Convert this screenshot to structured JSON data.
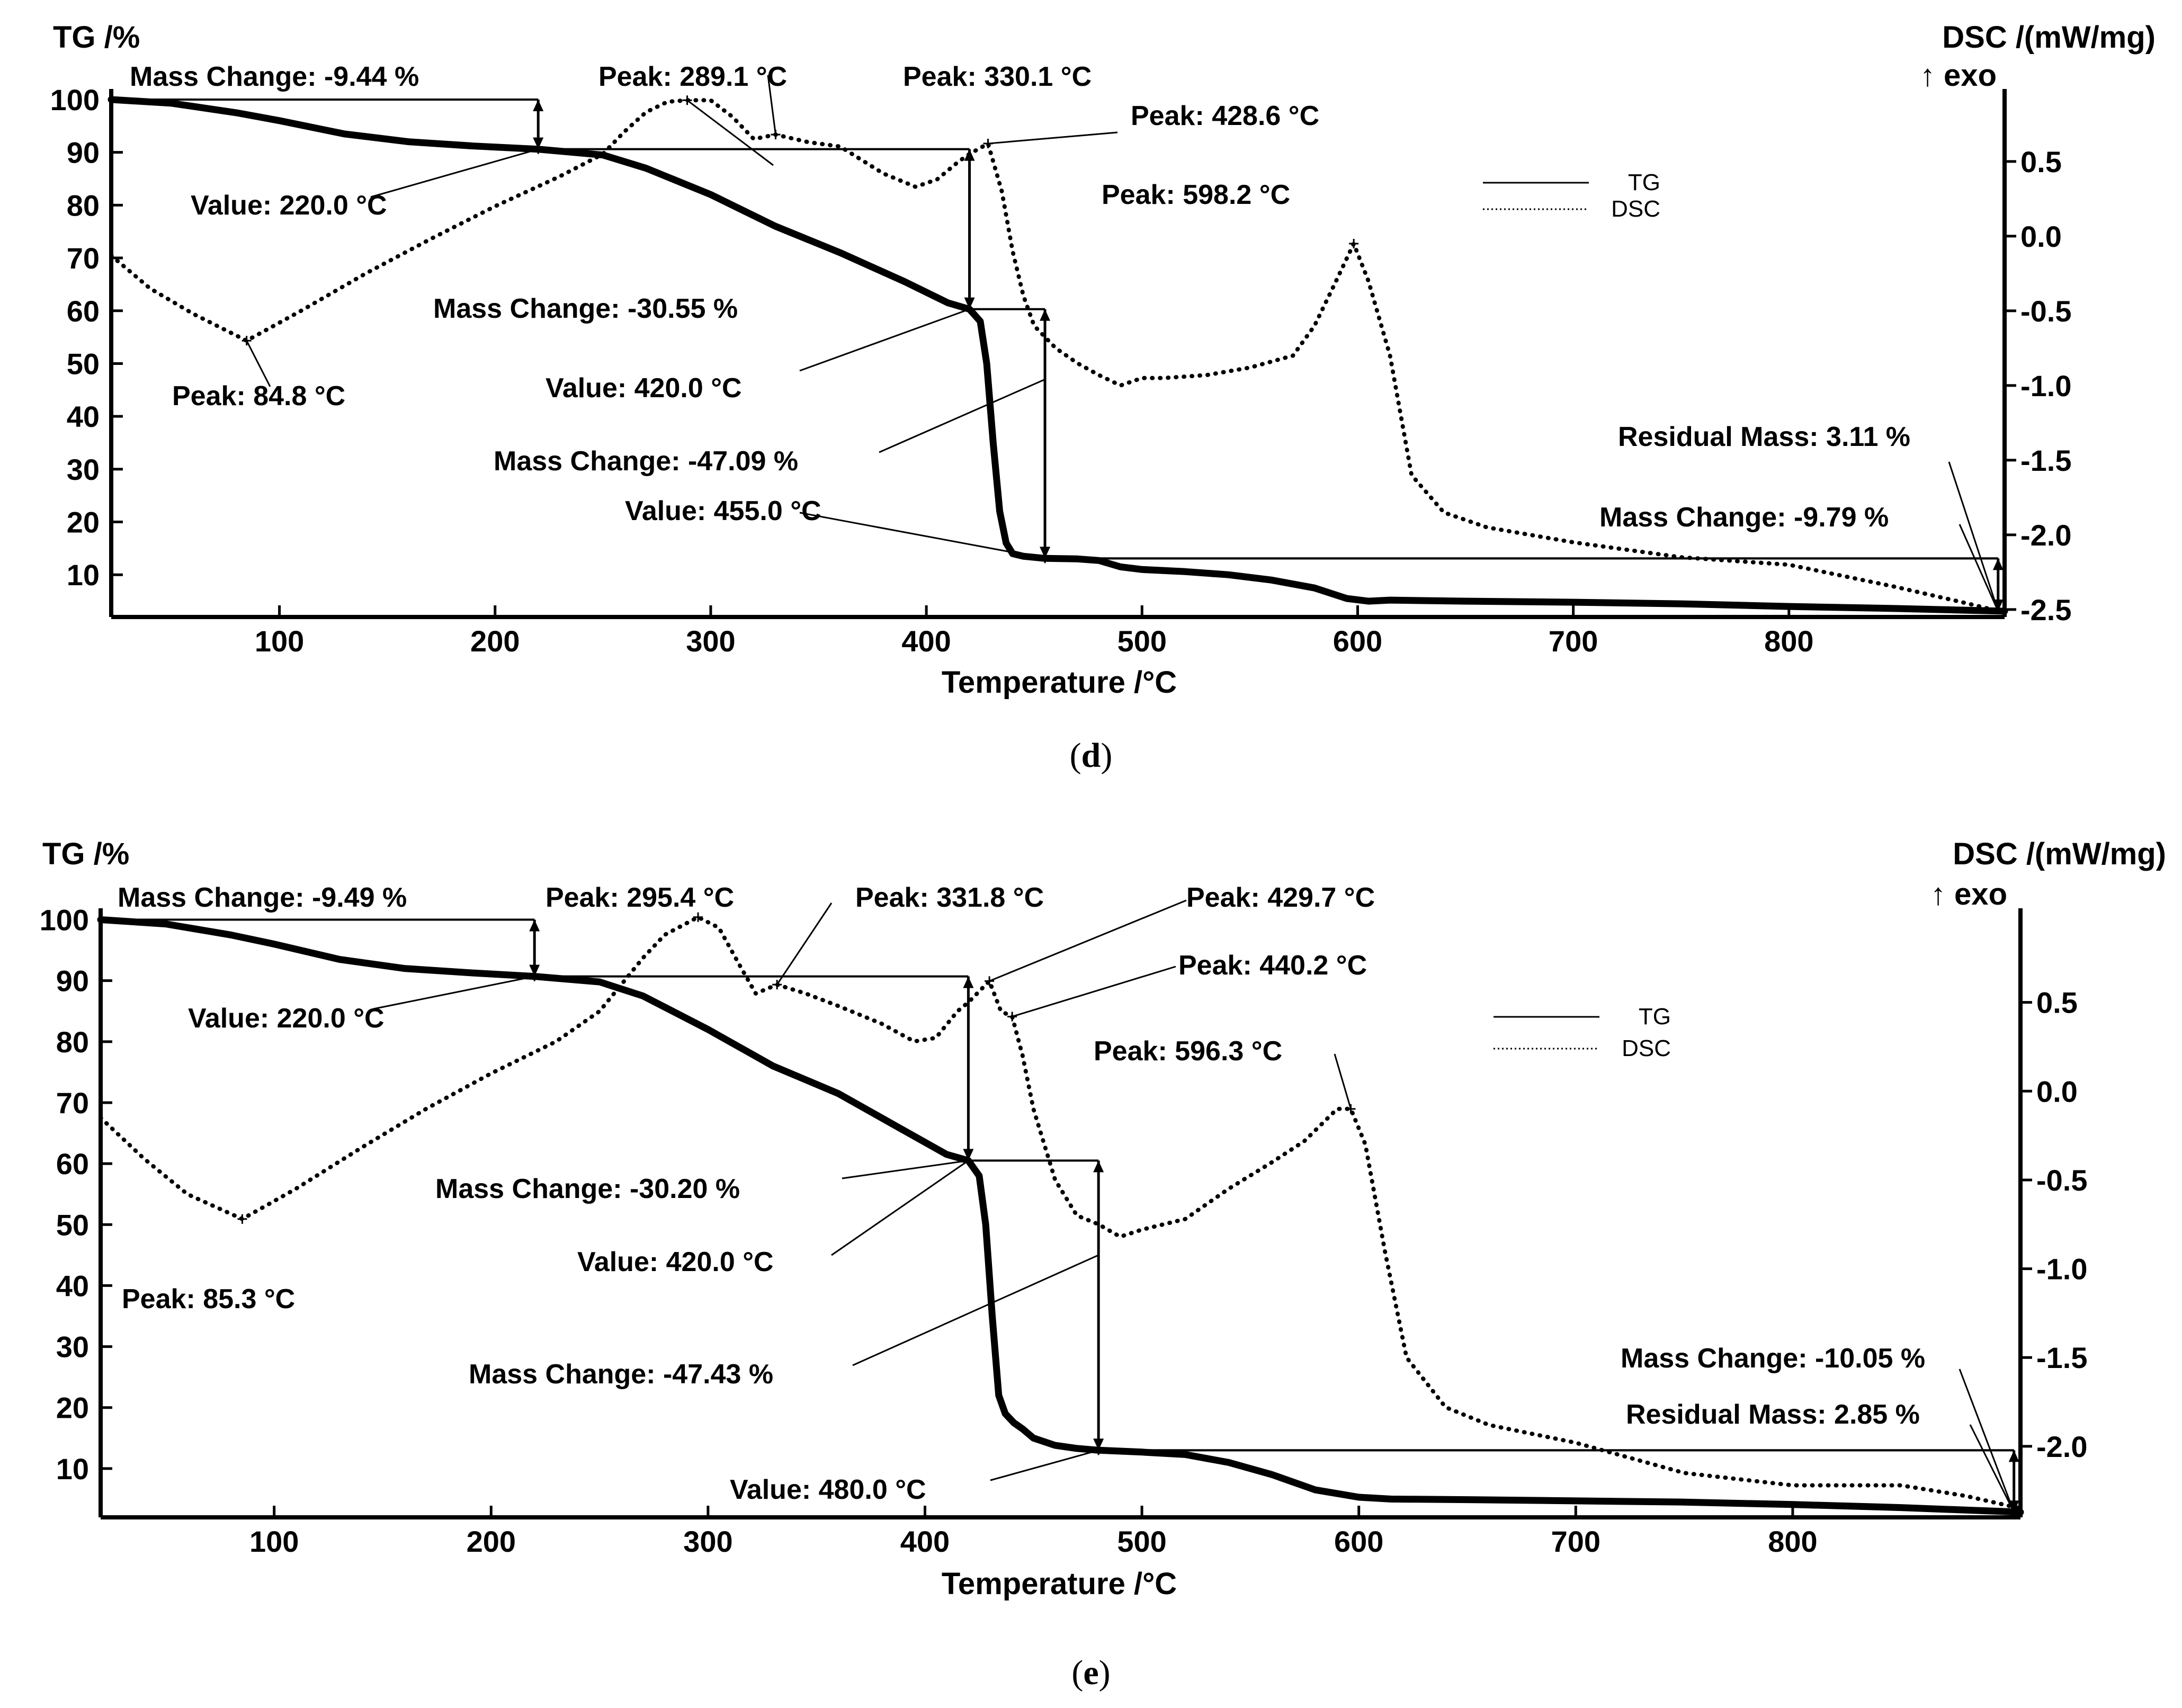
{
  "chart_data": [
    {
      "type": "line",
      "caption": "d",
      "xlabel": "Temperature /°C",
      "ylabel_left": "TG /%",
      "ylabel_right": "DSC /(mW/mg)",
      "exo_label": "↑ exo",
      "xlim": [
        22,
        900
      ],
      "ylim_left": [
        2,
        101
      ],
      "ylim_right": [
        -2.55,
        0.95
      ],
      "x_ticks": [
        "100",
        "200",
        "300",
        "400",
        "500",
        "600",
        "700",
        "800"
      ],
      "x_tick_values": [
        100,
        200,
        300,
        400,
        500,
        600,
        700,
        800
      ],
      "y_left_ticks": [
        "10",
        "20",
        "30",
        "40",
        "50",
        "60",
        "70",
        "80",
        "90",
        "100"
      ],
      "y_left_tick_values": [
        10,
        20,
        30,
        40,
        50,
        60,
        70,
        80,
        90,
        100
      ],
      "y_right_ticks": [
        "0.5",
        "0.0",
        "-0.5",
        "-1.0",
        "-1.5",
        "-2.0",
        "-2.5"
      ],
      "y_right_tick_values": [
        0.5,
        0.0,
        -0.5,
        -1.0,
        -1.5,
        -2.0,
        -2.5
      ],
      "legend": [
        "TG",
        "DSC"
      ],
      "series": [
        {
          "name": "TG",
          "style": "solid",
          "x": [
            22,
            50,
            80,
            100,
            130,
            160,
            190,
            220,
            250,
            270,
            300,
            330,
            360,
            390,
            410,
            420,
            425,
            428,
            431,
            434,
            437,
            440,
            445,
            450,
            455,
            470,
            480,
            490,
            500,
            520,
            540,
            560,
            580,
            595,
            605,
            615,
            650,
            700,
            750,
            800,
            850,
            900
          ],
          "y": [
            100,
            99.3,
            97.5,
            96,
            93.5,
            92,
            91.2,
            90.6,
            89.5,
            87,
            82,
            76,
            71,
            65.5,
            61.5,
            60.3,
            58,
            50,
            35,
            22,
            16,
            14,
            13.5,
            13.3,
            13.1,
            13,
            12.7,
            11.5,
            11,
            10.6,
            10,
            9,
            7.5,
            5.5,
            5,
            5.2,
            5,
            4.8,
            4.5,
            4,
            3.6,
            3.1
          ]
        },
        {
          "name": "DSC",
          "style": "dotted",
          "x": [
            22,
            40,
            60,
            84.8,
            110,
            140,
            170,
            200,
            230,
            250,
            260,
            270,
            280,
            289.1,
            300,
            310,
            320,
            330.1,
            345,
            360,
            380,
            395,
            405,
            415,
            420,
            428.6,
            435,
            440,
            445,
            450,
            460,
            470,
            480,
            490,
            500,
            510,
            530,
            550,
            570,
            580,
            590,
            598.2,
            605,
            615,
            625,
            640,
            660,
            700,
            750,
            800,
            850,
            880,
            900
          ],
          "y": [
            -0.13,
            -0.35,
            -0.52,
            -0.7,
            -0.5,
            -0.25,
            -0.02,
            0.2,
            0.4,
            0.55,
            0.7,
            0.83,
            0.9,
            0.91,
            0.91,
            0.8,
            0.65,
            0.68,
            0.63,
            0.6,
            0.42,
            0.33,
            0.38,
            0.5,
            0.55,
            0.62,
            0.3,
            -0.1,
            -0.4,
            -0.6,
            -0.75,
            -0.85,
            -0.93,
            -1.0,
            -0.95,
            -0.95,
            -0.93,
            -0.88,
            -0.8,
            -0.6,
            -0.3,
            -0.05,
            -0.3,
            -0.8,
            -1.6,
            -1.85,
            -1.95,
            -2.05,
            -2.15,
            -2.2,
            -2.35,
            -2.45,
            -2.52
          ]
        }
      ],
      "step_annotations": [
        {
          "label": "Mass Change: -9.44 %",
          "x": 220,
          "y_from": 100,
          "y_to": 90.6,
          "line_from": 22
        },
        {
          "label": "Mass Change: -30.55 %",
          "x": 420,
          "y_from": 90.6,
          "y_to": 60.3,
          "line_from": 220
        },
        {
          "label": "Mass Change: -47.09 %",
          "x": 455,
          "y_from": 60.3,
          "y_to": 13.1,
          "line_from": 420
        },
        {
          "label": "Mass Change: -9.79 %",
          "x": 897,
          "y_from": 13.1,
          "y_to": 3.1,
          "line_from": 455
        }
      ],
      "point_annotations": [
        {
          "label": "Value: 220.0 °C"
        },
        {
          "label": "Value: 420.0 °C"
        },
        {
          "label": "Value: 455.0 °C"
        },
        {
          "label": "Residual Mass: 3.11 %"
        },
        {
          "label": "Peak: 84.8 °C"
        },
        {
          "label": "Peak: 289.1 °C"
        },
        {
          "label": "Peak: 330.1 °C"
        },
        {
          "label": "Peak: 428.6 °C"
        },
        {
          "label": "Peak: 598.2 °C"
        }
      ]
    },
    {
      "type": "line",
      "caption": "e",
      "xlabel": "Temperature /°C",
      "ylabel_left": "TG /%",
      "ylabel_right": "DSC /(mW/mg)",
      "exo_label": "↑ exo",
      "xlim": [
        20,
        905
      ],
      "ylim_left": [
        2,
        101
      ],
      "ylim_right": [
        -2.4,
        1.0
      ],
      "x_ticks": [
        "100",
        "200",
        "300",
        "400",
        "500",
        "600",
        "700",
        "800"
      ],
      "x_tick_values": [
        100,
        200,
        300,
        400,
        500,
        600,
        700,
        800
      ],
      "y_left_ticks": [
        "10",
        "20",
        "30",
        "40",
        "50",
        "60",
        "70",
        "80",
        "90",
        "100"
      ],
      "y_left_tick_values": [
        10,
        20,
        30,
        40,
        50,
        60,
        70,
        80,
        90,
        100
      ],
      "y_right_ticks": [
        "0.5",
        "0.0",
        "-0.5",
        "-1.0",
        "-1.5",
        "-2.0"
      ],
      "y_right_tick_values": [
        0.5,
        0.0,
        -0.5,
        -1.0,
        -1.5,
        -2.0
      ],
      "legend": [
        "TG",
        "DSC"
      ],
      "series": [
        {
          "name": "TG",
          "style": "solid",
          "x": [
            20,
            50,
            80,
            100,
            130,
            160,
            190,
            220,
            250,
            270,
            300,
            330,
            360,
            390,
            410,
            420,
            425,
            428,
            431,
            434,
            437,
            441,
            445,
            450,
            460,
            470,
            480,
            500,
            520,
            540,
            560,
            580,
            600,
            615,
            650,
            700,
            750,
            800,
            850,
            905
          ],
          "y": [
            100,
            99.3,
            97.5,
            96,
            93.5,
            92,
            91.3,
            90.7,
            89.8,
            87.5,
            82,
            76,
            71.5,
            65.5,
            61.5,
            60.5,
            58,
            50,
            35,
            22,
            19,
            17.5,
            16.5,
            15,
            13.8,
            13.3,
            13,
            12.7,
            12.3,
            11,
            9,
            6.5,
            5.3,
            5,
            4.9,
            4.7,
            4.5,
            4.1,
            3.6,
            2.85
          ]
        },
        {
          "name": "DSC",
          "style": "dotted",
          "x": [
            20,
            40,
            60,
            85.3,
            110,
            140,
            170,
            200,
            230,
            250,
            260,
            270,
            280,
            295.4,
            305,
            315,
            322,
            331.8,
            345,
            360,
            380,
            395,
            405,
            415,
            420,
            429.7,
            435,
            440.2,
            445,
            450,
            460,
            470,
            480,
            490,
            500,
            520,
            540,
            560,
            575,
            590,
            596.3,
            603,
            612,
            622,
            640,
            660,
            700,
            750,
            800,
            850,
            880,
            905
          ],
          "y": [
            -0.15,
            -0.38,
            -0.58,
            -0.72,
            -0.55,
            -0.32,
            -0.1,
            0.1,
            0.28,
            0.45,
            0.6,
            0.75,
            0.88,
            0.98,
            0.92,
            0.7,
            0.55,
            0.6,
            0.55,
            0.48,
            0.38,
            0.28,
            0.3,
            0.45,
            0.5,
            0.62,
            0.45,
            0.42,
            0.2,
            -0.1,
            -0.5,
            -0.7,
            -0.75,
            -0.82,
            -0.78,
            -0.72,
            -0.55,
            -0.4,
            -0.28,
            -0.1,
            -0.1,
            -0.3,
            -0.9,
            -1.5,
            -1.78,
            -1.88,
            -1.98,
            -2.15,
            -2.22,
            -2.22,
            -2.28,
            -2.35
          ]
        }
      ],
      "step_annotations": [
        {
          "label": "Mass Change: -9.49 %",
          "x": 220,
          "y_from": 100,
          "y_to": 90.7,
          "line_from": 20
        },
        {
          "label": "Mass Change: -30.20 %",
          "x": 420,
          "y_from": 90.7,
          "y_to": 60.5,
          "line_from": 220
        },
        {
          "label": "Mass Change: -47.43 %",
          "x": 480,
          "y_from": 60.5,
          "y_to": 13.0,
          "line_from": 420
        },
        {
          "label": "Mass Change: -10.05 %",
          "x": 902,
          "y_from": 13.0,
          "y_to": 2.85,
          "line_from": 480
        }
      ],
      "point_annotations": [
        {
          "label": "Value: 220.0 °C"
        },
        {
          "label": "Value: 420.0 °C"
        },
        {
          "label": "Value: 480.0 °C"
        },
        {
          "label": "Residual Mass: 2.85 %"
        },
        {
          "label": "Peak: 85.3 °C"
        },
        {
          "label": "Peak: 295.4 °C"
        },
        {
          "label": "Peak: 331.8 °C"
        },
        {
          "label": "Peak: 429.7 °C"
        },
        {
          "label": "Peak: 440.2 °C"
        },
        {
          "label": "Peak: 596.3 °C"
        }
      ]
    }
  ]
}
